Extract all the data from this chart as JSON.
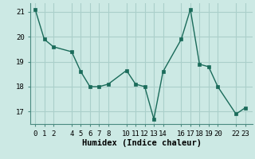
{
  "x": [
    0,
    1,
    2,
    4,
    5,
    6,
    7,
    8,
    10,
    11,
    12,
    13,
    14,
    16,
    17,
    18,
    19,
    20,
    22,
    23
  ],
  "y": [
    21.1,
    19.9,
    19.6,
    19.4,
    18.6,
    18.0,
    18.0,
    18.1,
    18.65,
    18.1,
    18.0,
    16.7,
    18.6,
    19.9,
    21.1,
    18.9,
    18.8,
    18.0,
    16.9,
    17.15
  ],
  "line_color": "#1a6b5a",
  "marker_color": "#1a6b5a",
  "bg_color": "#cce9e4",
  "grid_color": "#aacfca",
  "xlabel": "Humidex (Indice chaleur)",
  "xlabel_fontsize": 7.5,
  "tick_fontsize": 6.5,
  "xlim": [
    -0.5,
    23.8
  ],
  "ylim": [
    16.5,
    21.35
  ],
  "yticks": [
    17,
    18,
    19,
    20,
    21
  ],
  "xticks": [
    0,
    1,
    2,
    4,
    5,
    6,
    7,
    8,
    10,
    11,
    12,
    13,
    14,
    16,
    17,
    18,
    19,
    20,
    22,
    23
  ],
  "xtick_labels": [
    "0",
    "1",
    "2",
    "4",
    "5",
    "6",
    "7",
    "8",
    "10",
    "11",
    "12",
    "13",
    "14",
    "16",
    "17",
    "18",
    "19",
    "20",
    "22",
    "23"
  ]
}
